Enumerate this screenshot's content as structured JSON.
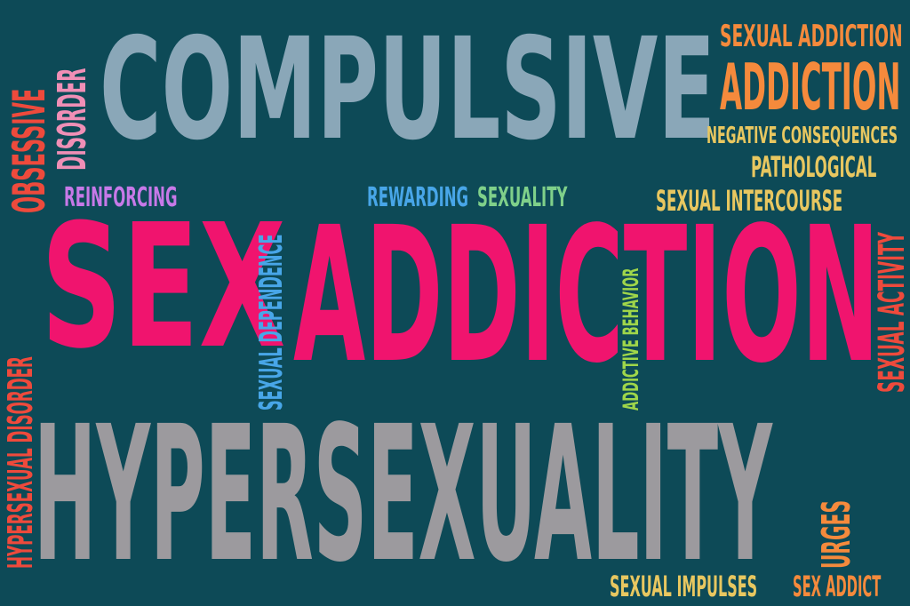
{
  "colors": {
    "background": "#0d4a57",
    "blue_grey": "#8aa7b8",
    "pink": "#f0146e",
    "grey": "#9c9a9e",
    "orange": "#f58a3c",
    "yellow": "#e8c760",
    "red_orange": "#ee4a3c",
    "light_pink": "#f08fb6",
    "violet": "#c779e8",
    "sky_blue": "#48a6e8",
    "green": "#7fd08a",
    "lime": "#9fd64a"
  },
  "words": {
    "compulsive": "COMPULSIVE",
    "sex": "SEX",
    "addiction_big": "ADDICTION",
    "hypersexuality": "HYPERSEXUALITY",
    "sexual_addiction": "SEXUAL ADDICTION",
    "addiction_small": "ADDICTION",
    "negative_consequences": "NEGATIVE CONSEQUENCES",
    "pathological": "PATHOLOGICAL",
    "sexual_intercourse": "SEXUAL INTERCOURSE",
    "reinforcing": "REINFORCING",
    "rewarding": "REWARDING",
    "sexuality": "SEXUALITY",
    "obsessive": "OBSESSIVE",
    "disorder": "DISORDER",
    "sexual_dependence": "SEXUAL DEPENDENCE",
    "addictive_behavior": "ADDICTIVE BEHAVIOR",
    "hypersexual_disorder": "HYPERSEXUAL DISORDER",
    "sexual_activity": "SEXUAL ACTIVITY",
    "urges": "URGES",
    "sexual_impulses": "SEXUAL IMPULSES",
    "sex_addict": "SEX ADDICT"
  }
}
